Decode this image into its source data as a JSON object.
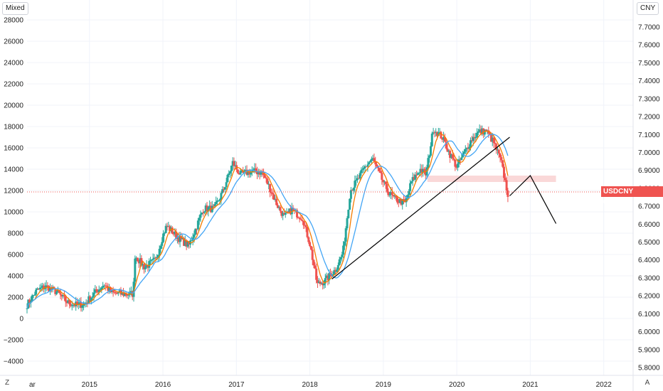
{
  "ui": {
    "left_scale_button": "Mixed",
    "right_scale_button": "CNY",
    "bottom_left_button": "Z",
    "bottom_right_button": "A",
    "price_label_symbol": "USDCNY",
    "price_label_value": "6.7798",
    "colors": {
      "candle_up": "#26a69a",
      "candle_down": "#ef5350",
      "ma_fast": "#f57c00",
      "ma_slow": "#42a5f5",
      "trendline": "#000000",
      "highlight_zone": "#f8c8c8",
      "price_line": "#ef5350",
      "grid": "#f0f3fa"
    }
  },
  "chart_data": {
    "type": "candlestick",
    "symbol": "USDCNY",
    "left_axis": {
      "ticks": [
        "28000",
        "26000",
        "24000",
        "22000",
        "20000",
        "18000",
        "16000",
        "14000",
        "12000",
        "10000",
        "8000",
        "6000",
        "4000",
        "2000",
        "0",
        "−2000",
        "−4000"
      ],
      "range": [
        -5000,
        29000
      ]
    },
    "right_axis": {
      "ticks": [
        "7.7000",
        "7.6000",
        "7.5000",
        "7.4000",
        "7.3000",
        "7.2000",
        "7.1000",
        "7.0000",
        "6.9000",
        "6.8000",
        "6.7000",
        "6.6000",
        "6.5000",
        "6.4000",
        "6.3000",
        "6.2000",
        "6.1000",
        "6.0000",
        "5.9000",
        "5.8000"
      ],
      "range": [
        5.75,
        7.78
      ],
      "last_price": 6.7798
    },
    "x_axis": {
      "ticks": [
        "ar",
        "2015",
        "2016",
        "2017",
        "2018",
        "2019",
        "2020",
        "2021",
        "2022"
      ],
      "tick_dates": [
        2014.15,
        2015.0,
        2016.0,
        2017.0,
        2018.0,
        2019.0,
        2020.0,
        2021.0,
        2022.0
      ],
      "range": [
        2014.15,
        2022.4
      ]
    },
    "series_keypoints": [
      [
        2014.15,
        1300
      ],
      [
        2014.28,
        2600
      ],
      [
        2014.4,
        3000
      ],
      [
        2014.55,
        2500
      ],
      [
        2014.7,
        1500
      ],
      [
        2014.85,
        1200
      ],
      [
        2014.95,
        1500
      ],
      [
        2015.1,
        2600
      ],
      [
        2015.2,
        3200
      ],
      [
        2015.3,
        2400
      ],
      [
        2015.45,
        2300
      ],
      [
        2015.6,
        2300
      ],
      [
        2015.61,
        6000
      ],
      [
        2015.75,
        4800
      ],
      [
        2015.9,
        5500
      ],
      [
        2016.0,
        7800
      ],
      [
        2016.05,
        8700
      ],
      [
        2016.2,
        7600
      ],
      [
        2016.35,
        6800
      ],
      [
        2016.45,
        8500
      ],
      [
        2016.55,
        10300
      ],
      [
        2016.7,
        10300
      ],
      [
        2016.82,
        12000
      ],
      [
        2016.95,
        14600
      ],
      [
        2017.05,
        13500
      ],
      [
        2017.2,
        13800
      ],
      [
        2017.35,
        13700
      ],
      [
        2017.45,
        12300
      ],
      [
        2017.55,
        10700
      ],
      [
        2017.65,
        9500
      ],
      [
        2017.75,
        10200
      ],
      [
        2017.9,
        9400
      ],
      [
        2018.0,
        7000
      ],
      [
        2018.1,
        3200
      ],
      [
        2018.2,
        3500
      ],
      [
        2018.35,
        4600
      ],
      [
        2018.45,
        6200
      ],
      [
        2018.55,
        12000
      ],
      [
        2018.65,
        13000
      ],
      [
        2018.75,
        14200
      ],
      [
        2018.85,
        15000
      ],
      [
        2018.95,
        13500
      ],
      [
        2019.05,
        12000
      ],
      [
        2019.15,
        11200
      ],
      [
        2019.3,
        10800
      ],
      [
        2019.38,
        12800
      ],
      [
        2019.5,
        14000
      ],
      [
        2019.58,
        13500
      ],
      [
        2019.68,
        17800
      ],
      [
        2019.8,
        17000
      ],
      [
        2019.9,
        15500
      ],
      [
        2020.0,
        14200
      ],
      [
        2020.1,
        15500
      ],
      [
        2020.2,
        16800
      ],
      [
        2020.3,
        17500
      ],
      [
        2020.4,
        17600
      ],
      [
        2020.5,
        16500
      ],
      [
        2020.6,
        14800
      ],
      [
        2020.7,
        11500
      ]
    ],
    "moving_averages": [
      {
        "color": "orange",
        "span": 0.12
      },
      {
        "color": "blue",
        "span": 0.3
      }
    ],
    "annotations": {
      "trendline_from": [
        2018.3,
        3700
      ],
      "trendline_to": [
        2020.72,
        17000
      ],
      "support_zone": {
        "x_from": 2019.6,
        "x_to": 2021.35,
        "y_from": 12800,
        "y_to": 13400
      },
      "projection_path": [
        [
          2020.72,
          11500
        ],
        [
          2021.0,
          13400
        ],
        [
          2021.35,
          8900
        ]
      ]
    }
  }
}
